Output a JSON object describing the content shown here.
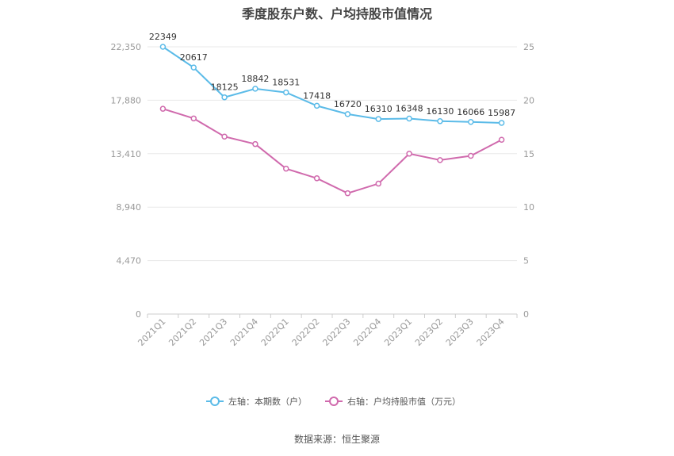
{
  "chart_data": {
    "type": "line",
    "title": "季度股东户数、户均持股市值情况",
    "categories": [
      "2021Q1",
      "2021Q2",
      "2021Q3",
      "2021Q4",
      "2022Q1",
      "2022Q2",
      "2022Q3",
      "2022Q4",
      "2023Q1",
      "2023Q2",
      "2023Q3",
      "2023Q4"
    ],
    "y_left": {
      "ticks": [
        "0",
        "4,470",
        "8,940",
        "13,410",
        "17,880",
        "22,350"
      ],
      "ylim": [
        0,
        22350
      ]
    },
    "y_right": {
      "ticks": [
        "0",
        "5",
        "10",
        "15",
        "20",
        "25"
      ],
      "ylim": [
        0,
        25
      ]
    },
    "series": [
      {
        "name": "左轴：本期数（户）",
        "axis": "left",
        "color": "#5bbbe8",
        "values": [
          22349,
          20617,
          18125,
          18842,
          18531,
          17418,
          16720,
          16310,
          16348,
          16130,
          16066,
          15987
        ],
        "labels": [
          "22349",
          "20617",
          "18125",
          "18842",
          "18531",
          "17418",
          "16720",
          "16310",
          "16348",
          "16130",
          "16066",
          "15987"
        ]
      },
      {
        "name": "右轴：户均持股市值（万元）",
        "axis": "right",
        "color": "#d06aad",
        "values": [
          19.2,
          18.3,
          16.6,
          15.9,
          13.6,
          12.7,
          11.3,
          12.2,
          15.0,
          14.4,
          14.8,
          16.3
        ]
      }
    ],
    "grid": true,
    "legend": "bottom"
  },
  "footer": {
    "source": "数据来源：恒生聚源"
  }
}
